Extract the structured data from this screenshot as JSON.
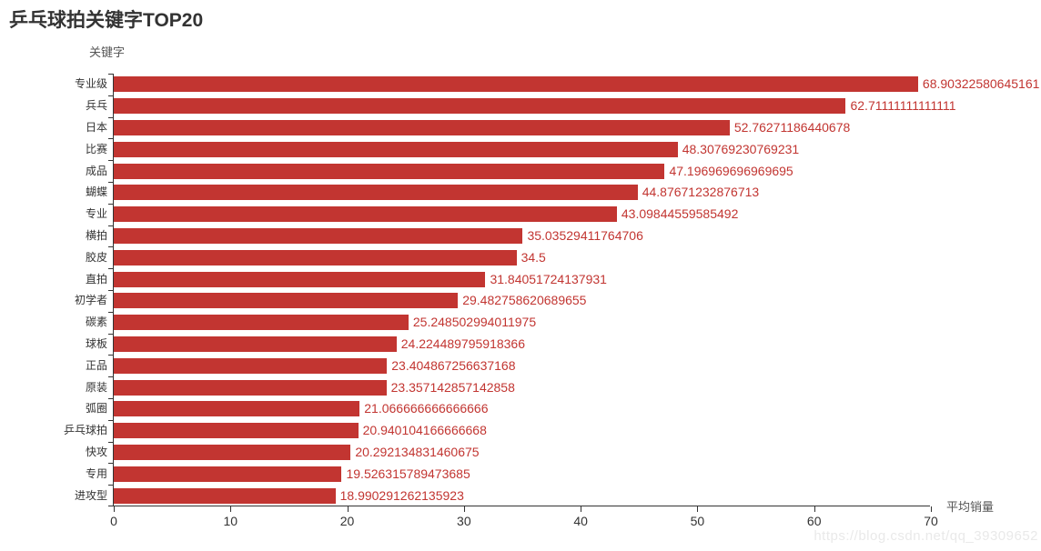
{
  "title": "乒乓球拍关键字TOP20",
  "watermark": "https://blog.csdn.net/qq_39309652",
  "colors": {
    "bar": "#c23531",
    "value_label": "#c23531",
    "axis": "#333333",
    "title": "#333333",
    "axis_name": "#555555",
    "watermark": "#e9e9e9",
    "background": "#ffffff"
  },
  "chart_data": {
    "type": "bar",
    "orientation": "horizontal",
    "title": "乒乓球拍关键字TOP20",
    "xlabel": "平均销量",
    "ylabel": "关键字",
    "xlim": [
      0,
      70
    ],
    "x_ticks": [
      0,
      10,
      20,
      30,
      40,
      50,
      60,
      70
    ],
    "grid": false,
    "legend": false,
    "categories": [
      "专业级",
      "兵乓",
      "日本",
      "比赛",
      "成品",
      "蝴蝶",
      "专业",
      "横拍",
      "胶皮",
      "直拍",
      "初学者",
      "碳素",
      "球板",
      "正品",
      "原装",
      "弧圈",
      "乒乓球拍",
      "快攻",
      "专用",
      "进攻型"
    ],
    "values": [
      68.90322580645162,
      62.71111111111111,
      52.76271186440678,
      48.30769230769231,
      47.196969696969695,
      44.87671232876713,
      43.09844559585492,
      35.03529411764706,
      34.5,
      31.84051724137931,
      29.482758620689655,
      25.248502994011975,
      24.224489795918366,
      23.404867256637168,
      23.357142857142858,
      21.066666666666666,
      20.940104166666668,
      20.292134831460675,
      19.526315789473685,
      18.990291262135923
    ],
    "value_labels": [
      "68.90322580645161",
      "62.71111111111111",
      "52.76271186440678",
      "48.30769230769231",
      "47.196969696969695",
      "44.87671232876713",
      "43.09844559585492",
      "35.03529411764706",
      "34.5",
      "31.84051724137931",
      "29.482758620689655",
      "25.248502994011975",
      "24.224489795918366",
      "23.404867256637168",
      "23.357142857142858",
      "21.066666666666666",
      "20.940104166666668",
      "20.292134831460675",
      "19.526315789473685",
      "18.990291262135923"
    ]
  }
}
